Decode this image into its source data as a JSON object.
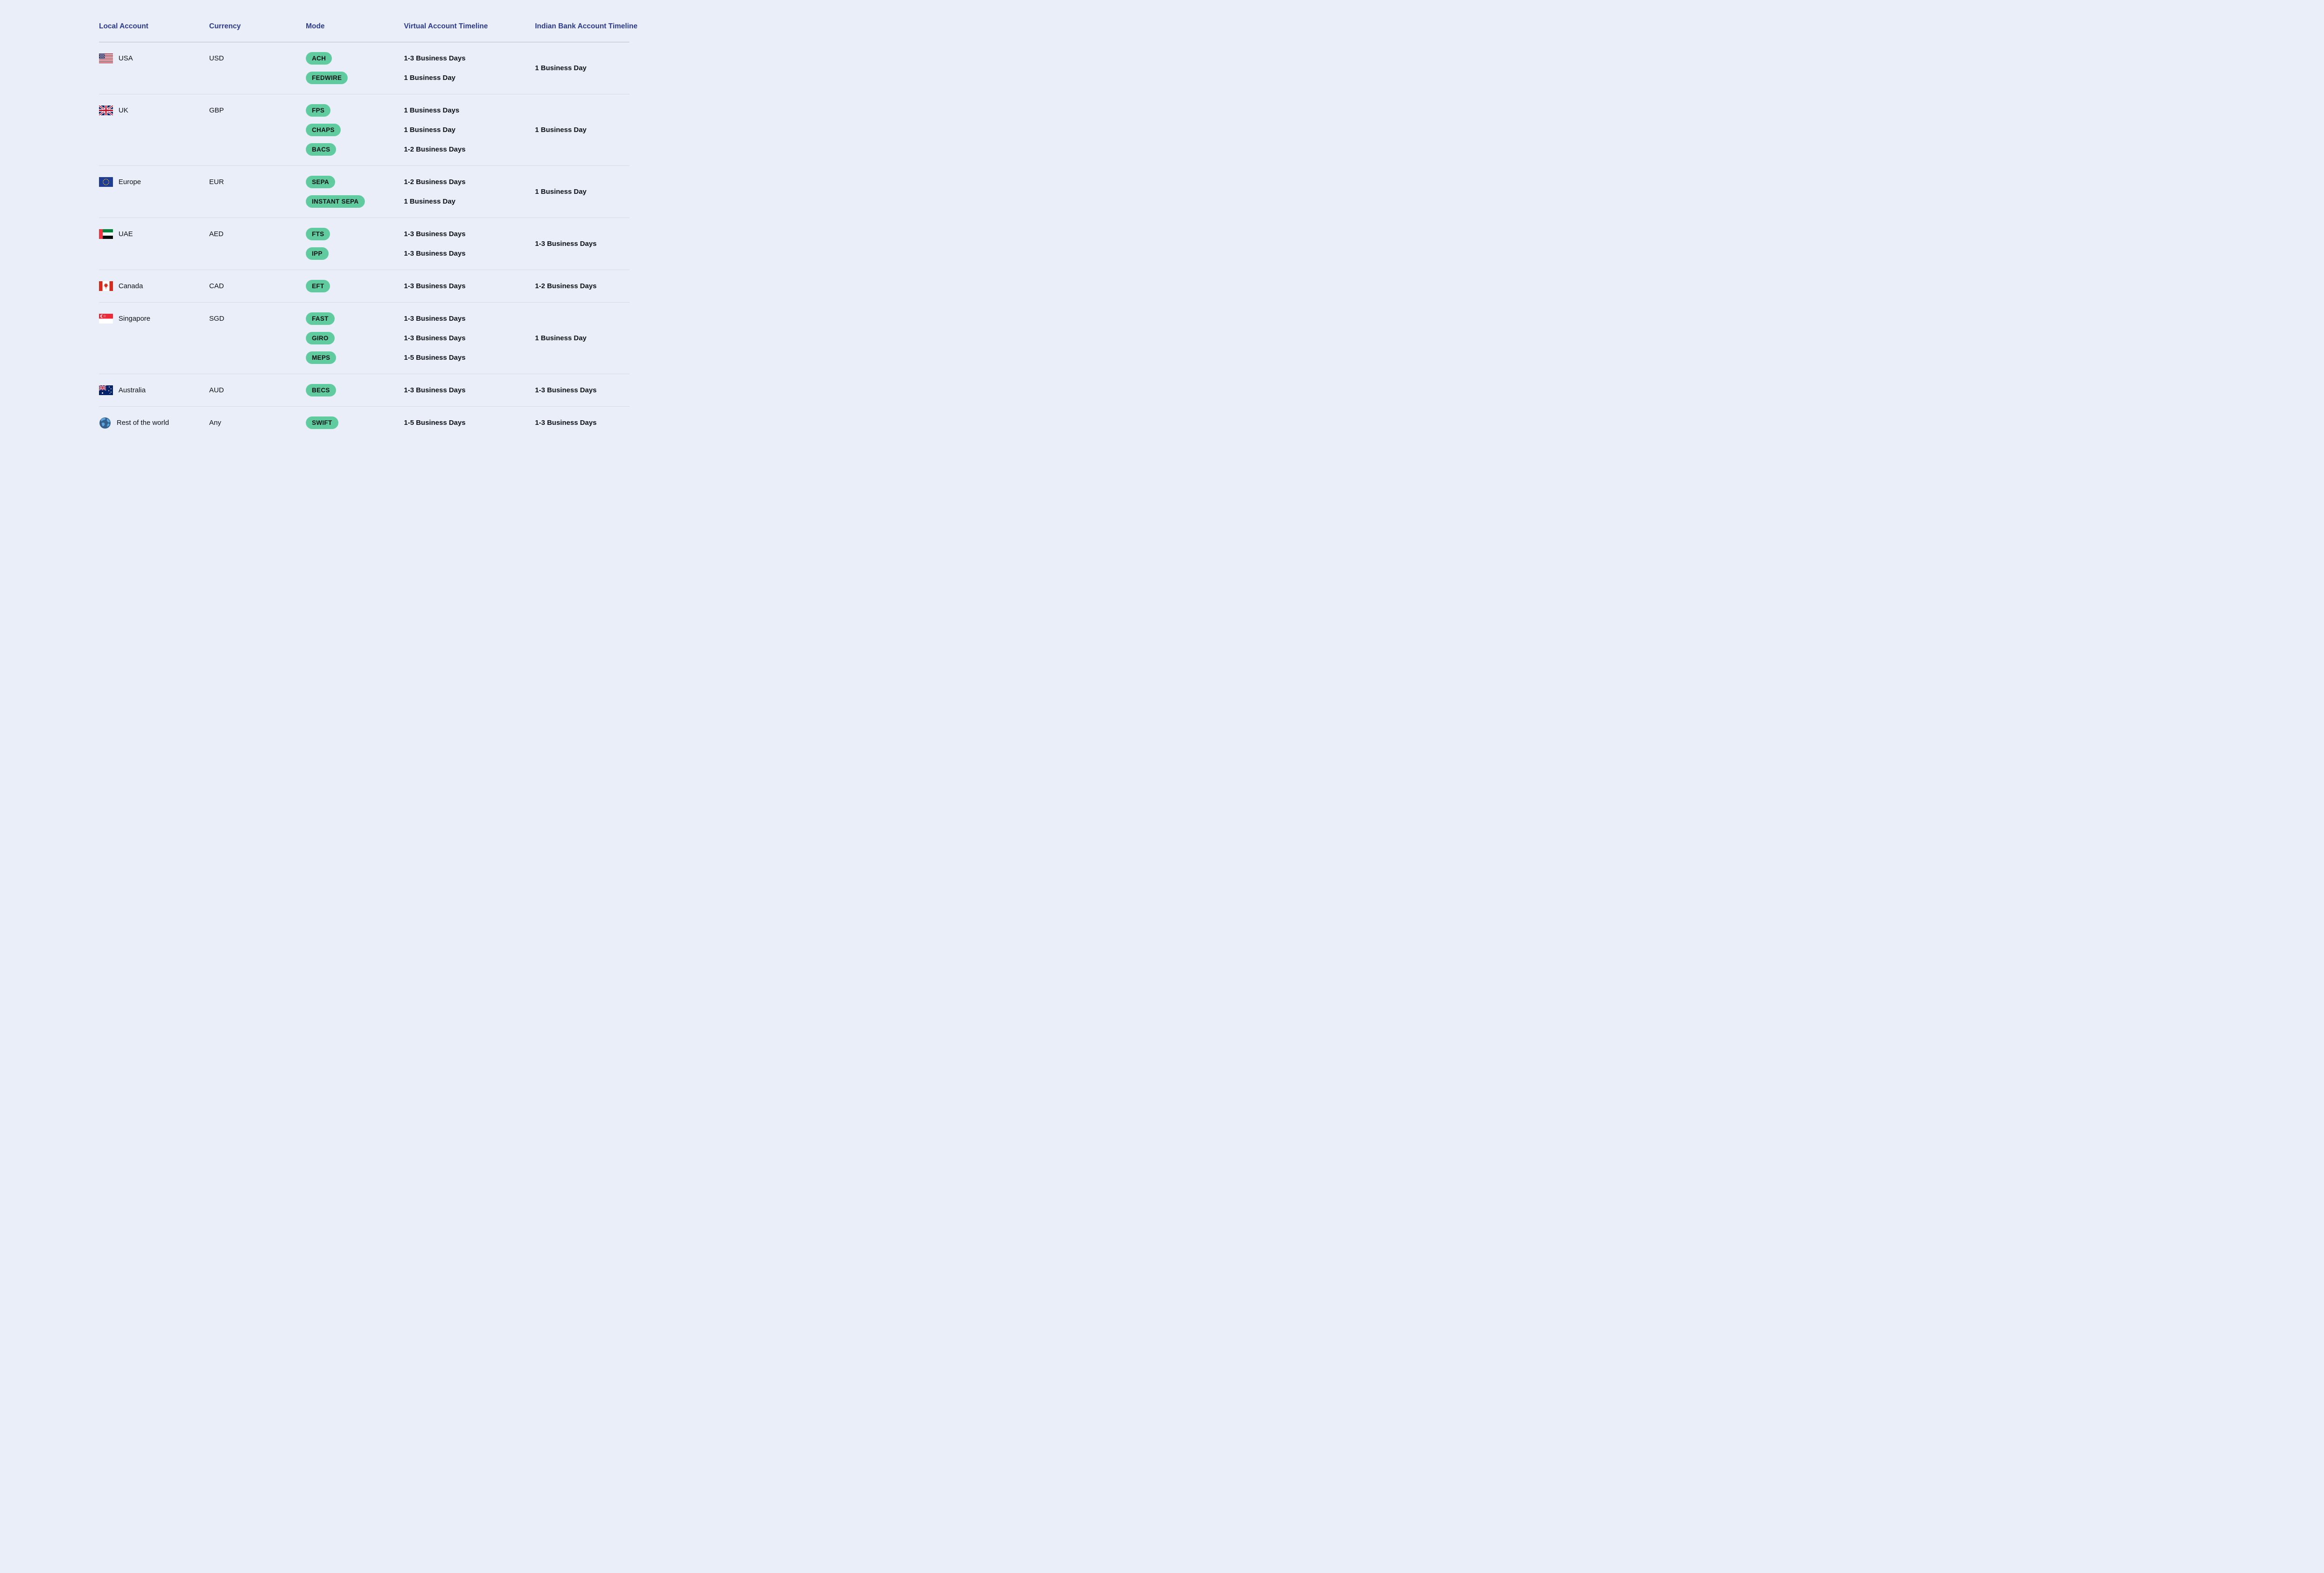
{
  "page": {
    "background": "#eaeef8"
  },
  "colors": {
    "accent_green": "#5fcb9f",
    "header_navy": "#2b3a8c",
    "row_divider": "#d3d8e2",
    "header_divider": "#b3bac8",
    "text_dark": "#0d1117"
  },
  "table": {
    "headers": [
      "Local Account",
      "Currency",
      "Mode",
      "Virtual Account Timeline",
      "Indian Bank Account Timeline"
    ],
    "rows": [
      {
        "country": "USA",
        "flag_icon": "usa-flag-icon",
        "currency": "USD",
        "modes": [
          {
            "label": "ACH",
            "virtual_timeline": "1-3 Business Days"
          },
          {
            "label": "FEDWIRE",
            "virtual_timeline": "1 Business Day"
          }
        ],
        "indian_timeline": "1 Business Day"
      },
      {
        "country": "UK",
        "flag_icon": "uk-flag-icon",
        "currency": "GBP",
        "modes": [
          {
            "label": "FPS",
            "virtual_timeline": "1 Business Days"
          },
          {
            "label": "CHAPS",
            "virtual_timeline": "1 Business Day"
          },
          {
            "label": "BACS",
            "virtual_timeline": "1-2 Business Days"
          }
        ],
        "indian_timeline": "1 Business Day"
      },
      {
        "country": "Europe",
        "flag_icon": "eu-flag-icon",
        "currency": "EUR",
        "modes": [
          {
            "label": "SEPA",
            "virtual_timeline": "1-2 Business Days"
          },
          {
            "label": "INSTANT SEPA",
            "virtual_timeline": "1 Business Day"
          }
        ],
        "indian_timeline": "1 Business Day"
      },
      {
        "country": "UAE",
        "flag_icon": "uae-flag-icon",
        "currency": "AED",
        "modes": [
          {
            "label": "FTS",
            "virtual_timeline": "1-3 Business Days"
          },
          {
            "label": "IPP",
            "virtual_timeline": "1-3 Business Days"
          }
        ],
        "indian_timeline": "1-3 Business Days"
      },
      {
        "country": "Canada",
        "flag_icon": "canada-flag-icon",
        "currency": "CAD",
        "modes": [
          {
            "label": "EFT",
            "virtual_timeline": "1-3 Business Days"
          }
        ],
        "indian_timeline": "1-2 Business Days"
      },
      {
        "country": "Singapore",
        "flag_icon": "singapore-flag-icon",
        "currency": "SGD",
        "modes": [
          {
            "label": "FAST",
            "virtual_timeline": "1-3 Business Days"
          },
          {
            "label": "GIRO",
            "virtual_timeline": "1-3 Business Days"
          },
          {
            "label": "MEPS",
            "virtual_timeline": "1-5 Business Days"
          }
        ],
        "indian_timeline": "1 Business Day"
      },
      {
        "country": "Australia",
        "flag_icon": "australia-flag-icon",
        "currency": "AUD",
        "modes": [
          {
            "label": "BECS",
            "virtual_timeline": "1-3 Business Days"
          }
        ],
        "indian_timeline": "1-3 Business Days"
      },
      {
        "country": "Rest of the world",
        "flag_icon": "globe-icon",
        "currency": "Any",
        "modes": [
          {
            "label": "SWIFT",
            "virtual_timeline": "1-5 Business Days"
          }
        ],
        "indian_timeline": "1-3 Business Days"
      }
    ]
  }
}
